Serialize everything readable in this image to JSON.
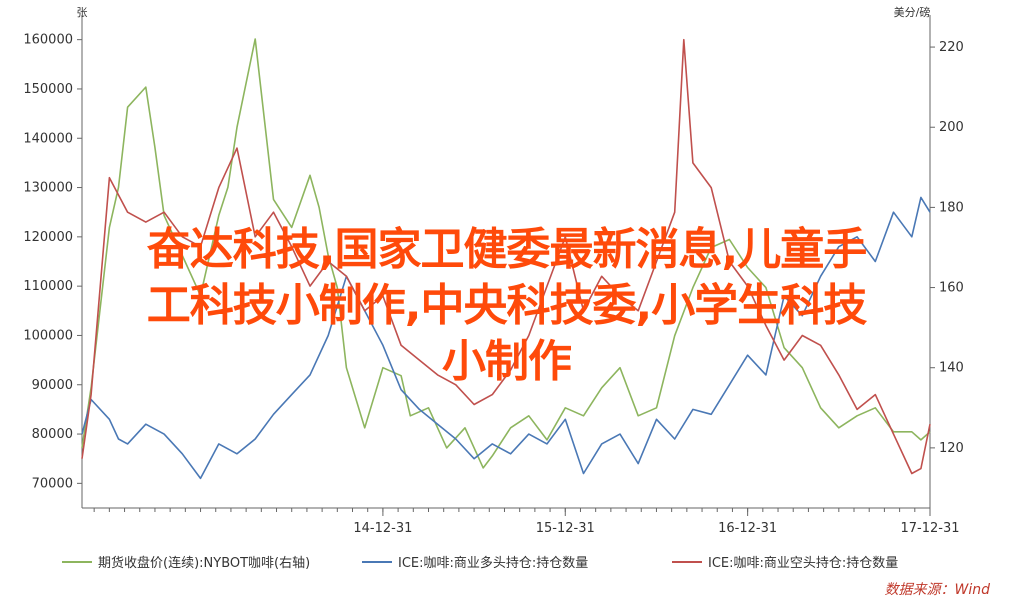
{
  "chart_data": {
    "type": "line",
    "left_unit": "张",
    "right_unit": "美分/磅",
    "left_axis": {
      "ylim": [
        65000,
        165000
      ],
      "ticks": [
        70000,
        80000,
        90000,
        100000,
        110000,
        120000,
        130000,
        140000,
        150000,
        160000
      ]
    },
    "right_axis": {
      "ylim": [
        105,
        228
      ],
      "ticks": [
        120,
        140,
        160,
        180,
        200,
        220
      ]
    },
    "x_ticks": [
      "14-12-31",
      "15-12-31",
      "16-12-31",
      "17-12-31"
    ],
    "x_range": [
      2013.35,
      2018.0
    ],
    "grid": false,
    "legend_position": "bottom",
    "series": [
      {
        "name": "期货收盘价(连续):NYBOT咖啡(右轴)",
        "axis": "right",
        "color": "#8db55e",
        "x": [
          2013.35,
          2013.4,
          2013.5,
          2013.55,
          2013.6,
          2013.7,
          2013.75,
          2013.8,
          2013.9,
          2014.0,
          2014.1,
          2014.15,
          2014.2,
          2014.3,
          2014.4,
          2014.5,
          2014.6,
          2014.65,
          2014.7,
          2014.75,
          2014.8,
          2014.9,
          2015.0,
          2015.1,
          2015.15,
          2015.25,
          2015.35,
          2015.45,
          2015.55,
          2015.6,
          2015.7,
          2015.8,
          2015.9,
          2016.0,
          2016.1,
          2016.2,
          2016.3,
          2016.4,
          2016.5,
          2016.6,
          2016.7,
          2016.8,
          2016.9,
          2017.0,
          2017.1,
          2017.2,
          2017.3,
          2017.4,
          2017.5,
          2017.6,
          2017.7,
          2017.8,
          2017.9,
          2017.95,
          2018.0
        ],
        "y": [
          120,
          135,
          175,
          185,
          205,
          210,
          195,
          178,
          168,
          158,
          178,
          185,
          200,
          222,
          182,
          175,
          188,
          180,
          168,
          160,
          140,
          125,
          140,
          138,
          128,
          130,
          120,
          125,
          115,
          118,
          125,
          128,
          122,
          130,
          128,
          135,
          140,
          128,
          130,
          148,
          160,
          170,
          172,
          165,
          160,
          145,
          140,
          130,
          125,
          128,
          130,
          124,
          124,
          122,
          124
        ]
      },
      {
        "name": "ICE:咖啡:商业多头持仓:持仓数量",
        "axis": "left",
        "color": "#4a78b5",
        "x": [
          2013.35,
          2013.4,
          2013.5,
          2013.55,
          2013.6,
          2013.7,
          2013.8,
          2013.9,
          2014.0,
          2014.1,
          2014.2,
          2014.3,
          2014.4,
          2014.5,
          2014.6,
          2014.7,
          2014.8,
          2014.9,
          2015.0,
          2015.1,
          2015.2,
          2015.3,
          2015.4,
          2015.5,
          2015.6,
          2015.7,
          2015.8,
          2015.9,
          2016.0,
          2016.1,
          2016.2,
          2016.3,
          2016.4,
          2016.5,
          2016.6,
          2016.7,
          2016.8,
          2016.9,
          2017.0,
          2017.1,
          2017.2,
          2017.3,
          2017.4,
          2017.5,
          2017.6,
          2017.7,
          2017.8,
          2017.9,
          2017.95,
          2018.0
        ],
        "y": [
          80000,
          87000,
          83000,
          79000,
          78000,
          82000,
          80000,
          76000,
          71000,
          78000,
          76000,
          79000,
          84000,
          88000,
          92000,
          100000,
          112000,
          105000,
          98000,
          89000,
          85000,
          82000,
          79000,
          75000,
          78000,
          76000,
          80000,
          78000,
          83000,
          72000,
          78000,
          80000,
          74000,
          83000,
          79000,
          85000,
          84000,
          90000,
          96000,
          92000,
          108000,
          104000,
          112000,
          118000,
          120000,
          115000,
          125000,
          120000,
          128000,
          125000
        ]
      },
      {
        "name": "ICE:咖啡:商业空头持仓:持仓数量",
        "axis": "left",
        "color": "#c0504d",
        "x": [
          2013.35,
          2013.4,
          2013.5,
          2013.6,
          2013.7,
          2013.8,
          2013.9,
          2014.0,
          2014.1,
          2014.2,
          2014.3,
          2014.4,
          2014.5,
          2014.6,
          2014.7,
          2014.8,
          2014.9,
          2015.0,
          2015.1,
          2015.2,
          2015.3,
          2015.4,
          2015.5,
          2015.6,
          2015.7,
          2015.8,
          2015.9,
          2016.0,
          2016.1,
          2016.2,
          2016.3,
          2016.4,
          2016.5,
          2016.6,
          2016.65,
          2016.7,
          2016.8,
          2016.9,
          2017.0,
          2017.1,
          2017.2,
          2017.3,
          2017.4,
          2017.5,
          2017.6,
          2017.7,
          2017.8,
          2017.9,
          2017.95,
          2018.0
        ],
        "y": [
          75000,
          88000,
          132000,
          125000,
          123000,
          125000,
          120000,
          118000,
          130000,
          138000,
          120000,
          125000,
          118000,
          110000,
          115000,
          112000,
          105000,
          108000,
          98000,
          95000,
          92000,
          90000,
          86000,
          88000,
          93000,
          100000,
          110000,
          120000,
          105000,
          112000,
          108000,
          105000,
          115000,
          125000,
          160000,
          135000,
          130000,
          115000,
          110000,
          102000,
          95000,
          100000,
          98000,
          92000,
          85000,
          88000,
          80000,
          72000,
          73000,
          82000
        ]
      }
    ],
    "source": "数据来源：Wind"
  },
  "overlay_title": {
    "line1": "奋达科技,国家卫健委最新消息,儿童手",
    "line2": "工科技小制作,中央科技委,小学生科技",
    "line3": "小制作"
  }
}
